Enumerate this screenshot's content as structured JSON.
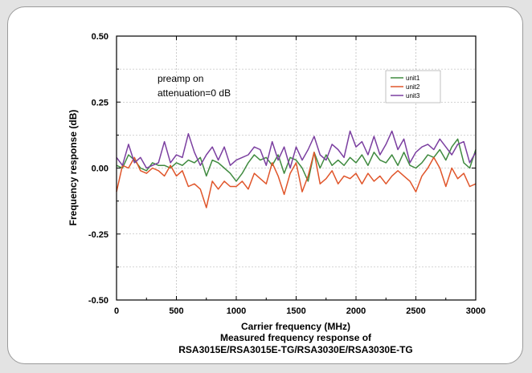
{
  "chart_data": {
    "type": "line",
    "title": "",
    "xlabel": "Carrier frequency (MHz)",
    "ylabel": "Frequency response (dB)",
    "caption_lines": [
      "Measured frequency response of",
      "RSA3015E/RSA3015E-TG/RSA3030E/RSA3030E-TG"
    ],
    "annotations": [
      "preamp on",
      "attenuation=0 dB"
    ],
    "xlim": [
      0,
      3000
    ],
    "ylim": [
      -0.5,
      0.5
    ],
    "xticks": [
      "0",
      "500",
      "1000",
      "1500",
      "2000",
      "2500",
      "3000"
    ],
    "yticks": [
      "-0.50",
      "-0.25",
      "0.00",
      "0.25",
      "0.50"
    ],
    "grid": true,
    "legend_position": "top-right",
    "x": [
      0,
      50,
      100,
      150,
      200,
      250,
      300,
      350,
      400,
      450,
      500,
      550,
      600,
      650,
      700,
      750,
      800,
      850,
      900,
      950,
      1000,
      1050,
      1100,
      1150,
      1200,
      1250,
      1300,
      1350,
      1400,
      1450,
      1500,
      1550,
      1600,
      1650,
      1700,
      1750,
      1800,
      1850,
      1900,
      1950,
      2000,
      2050,
      2100,
      2150,
      2200,
      2250,
      2300,
      2350,
      2400,
      2450,
      2500,
      2550,
      2600,
      2650,
      2700,
      2750,
      2800,
      2850,
      2900,
      2950,
      3000
    ],
    "series": [
      {
        "name": "unit1",
        "color": "#3f8a3f",
        "values": [
          0.01,
          0.0,
          0.05,
          0.03,
          0.0,
          -0.01,
          0.02,
          0.01,
          0.01,
          0.0,
          0.02,
          0.01,
          0.03,
          0.02,
          0.04,
          -0.03,
          0.03,
          0.02,
          0.0,
          -0.02,
          -0.05,
          -0.02,
          0.02,
          0.05,
          0.03,
          0.04,
          0.01,
          0.05,
          -0.02,
          0.04,
          0.03,
          0.0,
          -0.05,
          0.06,
          0.0,
          0.05,
          0.01,
          0.03,
          0.01,
          0.04,
          0.02,
          0.05,
          0.01,
          0.06,
          0.03,
          0.02,
          0.05,
          0.01,
          0.06,
          0.01,
          0.0,
          0.02,
          0.05,
          0.04,
          0.07,
          0.03,
          0.08,
          0.11,
          0.02,
          0.0,
          0.07
        ]
      },
      {
        "name": "unit2",
        "color": "#e0552a",
        "values": [
          -0.09,
          0.01,
          0.0,
          0.04,
          -0.01,
          -0.02,
          0.0,
          -0.01,
          -0.03,
          0.01,
          -0.03,
          -0.01,
          -0.07,
          -0.06,
          -0.08,
          -0.15,
          -0.05,
          -0.08,
          -0.05,
          -0.07,
          -0.07,
          -0.05,
          -0.08,
          -0.02,
          -0.04,
          -0.06,
          0.02,
          -0.03,
          -0.1,
          -0.02,
          0.02,
          -0.09,
          -0.03,
          0.06,
          -0.06,
          -0.04,
          -0.01,
          -0.06,
          -0.03,
          -0.04,
          -0.02,
          -0.06,
          -0.02,
          -0.05,
          -0.03,
          -0.06,
          -0.03,
          -0.01,
          -0.03,
          -0.05,
          -0.09,
          -0.03,
          0.0,
          0.04,
          0.0,
          -0.07,
          0.0,
          -0.04,
          -0.02,
          -0.07,
          -0.06
        ]
      },
      {
        "name": "unit3",
        "color": "#7b3fa0",
        "values": [
          0.04,
          0.01,
          0.09,
          0.02,
          0.04,
          0.0,
          0.01,
          0.02,
          0.1,
          0.02,
          0.05,
          0.04,
          0.13,
          0.06,
          0.01,
          0.05,
          0.08,
          0.03,
          0.08,
          0.01,
          0.03,
          0.04,
          0.05,
          0.08,
          0.07,
          0.01,
          0.1,
          0.03,
          0.08,
          0.0,
          0.08,
          0.03,
          0.07,
          0.12,
          0.05,
          0.03,
          0.09,
          0.07,
          0.04,
          0.14,
          0.08,
          0.1,
          0.05,
          0.12,
          0.05,
          0.09,
          0.14,
          0.07,
          0.11,
          0.02,
          0.06,
          0.08,
          0.09,
          0.07,
          0.11,
          0.08,
          0.05,
          0.09,
          0.1,
          0.02,
          0.06
        ]
      }
    ]
  }
}
